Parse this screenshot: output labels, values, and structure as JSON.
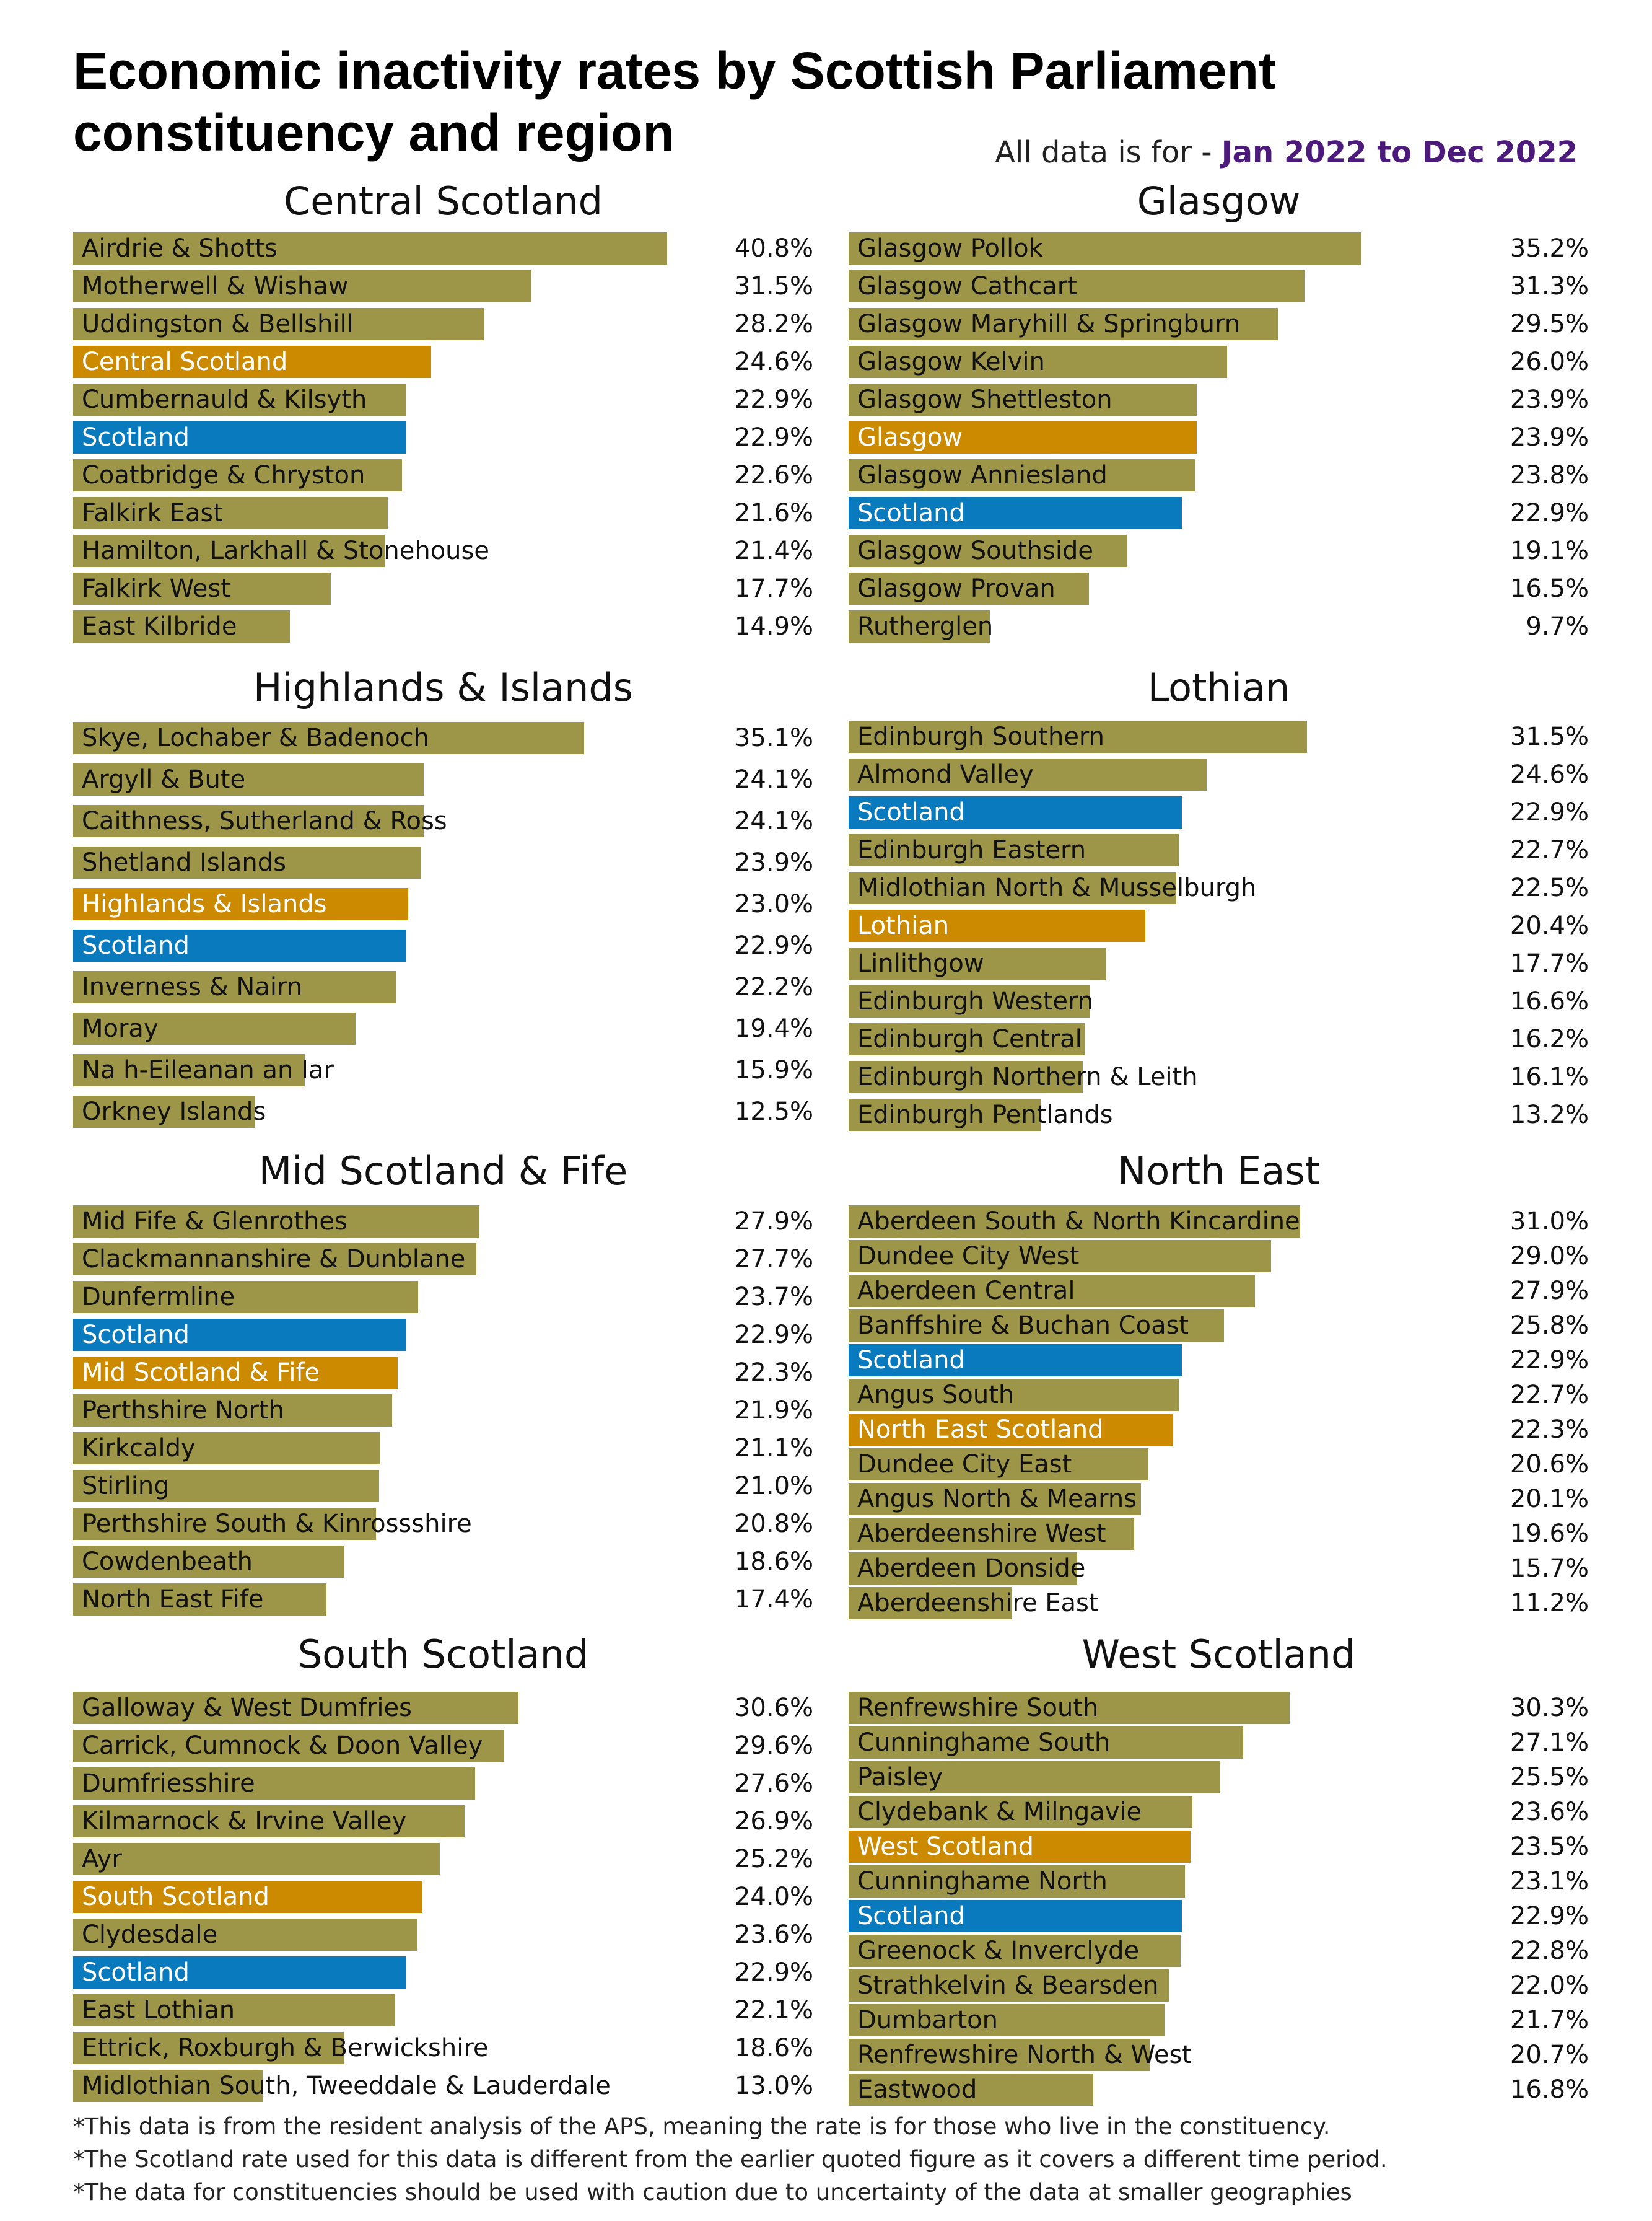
{
  "title": "Economic inactivity rates by Scottish Parliament constituency and region",
  "period": {
    "prefix": "All data is for - ",
    "range": "Jan 2022 to Dec 2022"
  },
  "colors": {
    "constituency": "#9d9548",
    "region": "#cc8a00",
    "scotland": "#0a7abf",
    "highlight_text": "#4b1a7a"
  },
  "chart_data": {
    "type": "bar",
    "orientation": "horizontal",
    "value_unit": "%",
    "panels": [
      {
        "title": "Central Scotland",
        "rows": [
          {
            "label": "Airdrie & Shotts",
            "value": 40.8,
            "kind": "constituency"
          },
          {
            "label": "Motherwell & Wishaw",
            "value": 31.5,
            "kind": "constituency"
          },
          {
            "label": "Uddingston & Bellshill",
            "value": 28.2,
            "kind": "constituency"
          },
          {
            "label": "Central Scotland",
            "value": 24.6,
            "kind": "region"
          },
          {
            "label": "Cumbernauld & Kilsyth",
            "value": 22.9,
            "kind": "constituency"
          },
          {
            "label": "Scotland",
            "value": 22.9,
            "kind": "scotland"
          },
          {
            "label": "Coatbridge & Chryston",
            "value": 22.6,
            "kind": "constituency"
          },
          {
            "label": "Falkirk East",
            "value": 21.6,
            "kind": "constituency"
          },
          {
            "label": "Hamilton, Larkhall & Stonehouse",
            "value": 21.4,
            "kind": "constituency"
          },
          {
            "label": "Falkirk West",
            "value": 17.7,
            "kind": "constituency"
          },
          {
            "label": "East Kilbride",
            "value": 14.9,
            "kind": "constituency"
          }
        ]
      },
      {
        "title": "Glasgow",
        "rows": [
          {
            "label": "Glasgow Pollok",
            "value": 35.2,
            "kind": "constituency"
          },
          {
            "label": "Glasgow Cathcart",
            "value": 31.3,
            "kind": "constituency"
          },
          {
            "label": "Glasgow Maryhill & Springburn",
            "value": 29.5,
            "kind": "constituency"
          },
          {
            "label": "Glasgow Kelvin",
            "value": 26.0,
            "kind": "constituency"
          },
          {
            "label": "Glasgow Shettleston",
            "value": 23.9,
            "kind": "constituency"
          },
          {
            "label": "Glasgow",
            "value": 23.9,
            "kind": "region"
          },
          {
            "label": "Glasgow Anniesland",
            "value": 23.8,
            "kind": "constituency"
          },
          {
            "label": "Scotland",
            "value": 22.9,
            "kind": "scotland"
          },
          {
            "label": "Glasgow Southside",
            "value": 19.1,
            "kind": "constituency"
          },
          {
            "label": "Glasgow Provan",
            "value": 16.5,
            "kind": "constituency"
          },
          {
            "label": "Rutherglen",
            "value": 9.7,
            "kind": "constituency"
          }
        ]
      },
      {
        "title": "Highlands & Islands",
        "rows": [
          {
            "label": "Skye, Lochaber & Badenoch",
            "value": 35.1,
            "kind": "constituency"
          },
          {
            "label": "Argyll & Bute",
            "value": 24.1,
            "kind": "constituency"
          },
          {
            "label": "Caithness, Sutherland & Ross",
            "value": 24.1,
            "kind": "constituency"
          },
          {
            "label": "Shetland Islands",
            "value": 23.9,
            "kind": "constituency"
          },
          {
            "label": "Highlands & Islands",
            "value": 23.0,
            "kind": "region"
          },
          {
            "label": "Scotland",
            "value": 22.9,
            "kind": "scotland"
          },
          {
            "label": "Inverness & Nairn",
            "value": 22.2,
            "kind": "constituency"
          },
          {
            "label": "Moray",
            "value": 19.4,
            "kind": "constituency"
          },
          {
            "label": "Na h-Eileanan an Iar",
            "value": 15.9,
            "kind": "constituency"
          },
          {
            "label": "Orkney Islands",
            "value": 12.5,
            "kind": "constituency"
          }
        ]
      },
      {
        "title": "Lothian",
        "rows": [
          {
            "label": "Edinburgh Southern",
            "value": 31.5,
            "kind": "constituency"
          },
          {
            "label": "Almond Valley",
            "value": 24.6,
            "kind": "constituency"
          },
          {
            "label": "Scotland",
            "value": 22.9,
            "kind": "scotland"
          },
          {
            "label": "Edinburgh Eastern",
            "value": 22.7,
            "kind": "constituency"
          },
          {
            "label": "Midlothian North & Musselburgh",
            "value": 22.5,
            "kind": "constituency"
          },
          {
            "label": "Lothian",
            "value": 20.4,
            "kind": "region"
          },
          {
            "label": "Linlithgow",
            "value": 17.7,
            "kind": "constituency"
          },
          {
            "label": "Edinburgh Western",
            "value": 16.6,
            "kind": "constituency"
          },
          {
            "label": "Edinburgh Central",
            "value": 16.2,
            "kind": "constituency"
          },
          {
            "label": "Edinburgh Northern & Leith",
            "value": 16.1,
            "kind": "constituency"
          },
          {
            "label": "Edinburgh Pentlands",
            "value": 13.2,
            "kind": "constituency"
          }
        ]
      },
      {
        "title": "Mid Scotland & Fife",
        "rows": [
          {
            "label": "Mid Fife & Glenrothes",
            "value": 27.9,
            "kind": "constituency"
          },
          {
            "label": "Clackmannanshire & Dunblane",
            "value": 27.7,
            "kind": "constituency"
          },
          {
            "label": "Dunfermline",
            "value": 23.7,
            "kind": "constituency"
          },
          {
            "label": "Scotland",
            "value": 22.9,
            "kind": "scotland"
          },
          {
            "label": "Mid Scotland & Fife",
            "value": 22.3,
            "kind": "region"
          },
          {
            "label": "Perthshire North",
            "value": 21.9,
            "kind": "constituency"
          },
          {
            "label": "Kirkcaldy",
            "value": 21.1,
            "kind": "constituency"
          },
          {
            "label": "Stirling",
            "value": 21.0,
            "kind": "constituency"
          },
          {
            "label": "Perthshire South & Kinrossshire",
            "value": 20.8,
            "kind": "constituency"
          },
          {
            "label": "Cowdenbeath",
            "value": 18.6,
            "kind": "constituency"
          },
          {
            "label": "North East Fife",
            "value": 17.4,
            "kind": "constituency"
          }
        ]
      },
      {
        "title": "North East",
        "rows": [
          {
            "label": "Aberdeen South & North Kincardine",
            "value": 31.0,
            "kind": "constituency"
          },
          {
            "label": "Dundee City West",
            "value": 29.0,
            "kind": "constituency"
          },
          {
            "label": "Aberdeen Central",
            "value": 27.9,
            "kind": "constituency"
          },
          {
            "label": "Banffshire & Buchan Coast",
            "value": 25.8,
            "kind": "constituency"
          },
          {
            "label": "Scotland",
            "value": 22.9,
            "kind": "scotland"
          },
          {
            "label": "Angus South",
            "value": 22.7,
            "kind": "constituency"
          },
          {
            "label": "North East Scotland",
            "value": 22.3,
            "kind": "region"
          },
          {
            "label": "Dundee City East",
            "value": 20.6,
            "kind": "constituency"
          },
          {
            "label": "Angus North & Mearns",
            "value": 20.1,
            "kind": "constituency"
          },
          {
            "label": "Aberdeenshire West",
            "value": 19.6,
            "kind": "constituency"
          },
          {
            "label": "Aberdeen Donside",
            "value": 15.7,
            "kind": "constituency"
          },
          {
            "label": "Aberdeenshire East",
            "value": 11.2,
            "kind": "constituency"
          }
        ]
      },
      {
        "title": "South Scotland",
        "rows": [
          {
            "label": "Galloway & West Dumfries",
            "value": 30.6,
            "kind": "constituency"
          },
          {
            "label": "Carrick, Cumnock & Doon Valley",
            "value": 29.6,
            "kind": "constituency"
          },
          {
            "label": "Dumfriesshire",
            "value": 27.6,
            "kind": "constituency"
          },
          {
            "label": "Kilmarnock & Irvine Valley",
            "value": 26.9,
            "kind": "constituency"
          },
          {
            "label": "Ayr",
            "value": 25.2,
            "kind": "constituency"
          },
          {
            "label": "South Scotland",
            "value": 24.0,
            "kind": "region"
          },
          {
            "label": "Clydesdale",
            "value": 23.6,
            "kind": "constituency"
          },
          {
            "label": "Scotland",
            "value": 22.9,
            "kind": "scotland"
          },
          {
            "label": "East Lothian",
            "value": 22.1,
            "kind": "constituency"
          },
          {
            "label": "Ettrick, Roxburgh & Berwickshire",
            "value": 18.6,
            "kind": "constituency"
          },
          {
            "label": "Midlothian South, Tweeddale & Lauderdale",
            "value": 13.0,
            "kind": "constituency"
          }
        ]
      },
      {
        "title": "West Scotland",
        "rows": [
          {
            "label": "Renfrewshire South",
            "value": 30.3,
            "kind": "constituency"
          },
          {
            "label": "Cunninghame South",
            "value": 27.1,
            "kind": "constituency"
          },
          {
            "label": "Paisley",
            "value": 25.5,
            "kind": "constituency"
          },
          {
            "label": "Clydebank & Milngavie",
            "value": 23.6,
            "kind": "constituency"
          },
          {
            "label": "West Scotland",
            "value": 23.5,
            "kind": "region"
          },
          {
            "label": "Cunninghame North",
            "value": 23.1,
            "kind": "constituency"
          },
          {
            "label": "Scotland",
            "value": 22.9,
            "kind": "scotland"
          },
          {
            "label": "Greenock & Inverclyde",
            "value": 22.8,
            "kind": "constituency"
          },
          {
            "label": "Strathkelvin & Bearsden",
            "value": 22.0,
            "kind": "constituency"
          },
          {
            "label": "Dumbarton",
            "value": 21.7,
            "kind": "constituency"
          },
          {
            "label": "Renfrewshire North & West",
            "value": 20.7,
            "kind": "constituency"
          },
          {
            "label": "Eastwood",
            "value": 16.8,
            "kind": "constituency"
          }
        ]
      }
    ]
  },
  "notes": [
    "*This data is from the resident analysis of the APS, meaning the rate is for those who live in the constituency.",
    "*The Scotland rate used for this data is different from the earlier quoted figure as it covers a different time period.",
    "*The data for constituencies should be used with caution due to uncertainty of the data at smaller geographies"
  ]
}
